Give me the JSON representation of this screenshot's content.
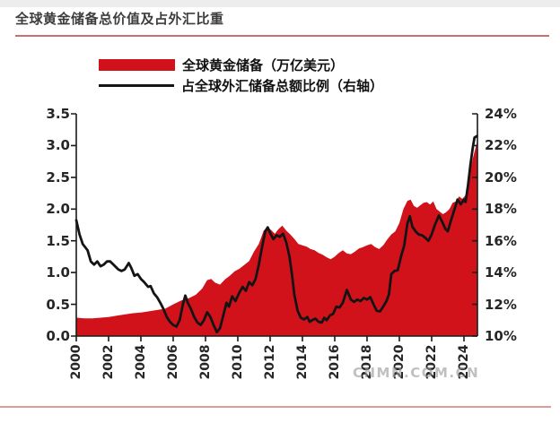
{
  "page": {
    "title": "全球黄金储备总价值及占外汇比重",
    "watermark": "CNMN.COM.CN"
  },
  "legend": [
    {
      "label": "全球黄金储备（万亿美元）",
      "swatch": "red-area"
    },
    {
      "label": "占全球外汇储备总额比例（右轴）",
      "swatch": "black-line"
    }
  ],
  "colors": {
    "gold_area": "#d2121a",
    "ratio_line": "#141414",
    "axis": "#1a1a1a",
    "title_rule": "#c87070",
    "bottom_rule": "#dd9c9c"
  },
  "chart_data": {
    "type": "area",
    "title": "全球黄金储备总价值及占外汇比重",
    "legend_position": "top",
    "grid": false,
    "x_axis": {
      "min": 2000,
      "max": 2024.85,
      "tick_years": [
        2000,
        2002,
        2004,
        2006,
        2008,
        2010,
        2012,
        2014,
        2016,
        2018,
        2020,
        2022,
        2024
      ],
      "labels": [
        "2000",
        "2002",
        "2004",
        "2006",
        "2008",
        "2010",
        "2012",
        "2014",
        "2016",
        "2018",
        "2020",
        "2022",
        "2024"
      ]
    },
    "left_axis": {
      "min": 0,
      "max": 3.5,
      "step": 0.5,
      "labels": [
        "3.5",
        "3.0",
        "2.5",
        "2.0",
        "1.5",
        "1.0",
        "0.5",
        "0.0"
      ]
    },
    "right_axis": {
      "min": 10,
      "max": 24,
      "step": 2,
      "labels": [
        "24%",
        "22%",
        "20%",
        "18%",
        "16%",
        "14%",
        "12%",
        "10%"
      ]
    },
    "series": [
      {
        "name": "全球黄金储备（万亿美元）",
        "style": "area",
        "axis": "left",
        "color": "#d2121a",
        "points": [
          [
            2000.0,
            0.29
          ],
          [
            2000.5,
            0.28
          ],
          [
            2001.0,
            0.28
          ],
          [
            2001.5,
            0.29
          ],
          [
            2002.0,
            0.3
          ],
          [
            2002.5,
            0.32
          ],
          [
            2003.0,
            0.34
          ],
          [
            2003.5,
            0.36
          ],
          [
            2004.0,
            0.37
          ],
          [
            2004.5,
            0.39
          ],
          [
            2005.0,
            0.41
          ],
          [
            2005.5,
            0.43
          ],
          [
            2006.0,
            0.5
          ],
          [
            2006.5,
            0.56
          ],
          [
            2007.0,
            0.6
          ],
          [
            2007.4,
            0.65
          ],
          [
            2007.8,
            0.75
          ],
          [
            2008.1,
            0.88
          ],
          [
            2008.35,
            0.9
          ],
          [
            2008.6,
            0.84
          ],
          [
            2008.9,
            0.81
          ],
          [
            2009.2,
            0.89
          ],
          [
            2009.5,
            0.95
          ],
          [
            2009.8,
            1.02
          ],
          [
            2010.1,
            1.06
          ],
          [
            2010.4,
            1.12
          ],
          [
            2010.7,
            1.18
          ],
          [
            2011.0,
            1.33
          ],
          [
            2011.3,
            1.45
          ],
          [
            2011.6,
            1.66
          ],
          [
            2011.85,
            1.72
          ],
          [
            2012.1,
            1.66
          ],
          [
            2012.3,
            1.61
          ],
          [
            2012.5,
            1.68
          ],
          [
            2012.75,
            1.74
          ],
          [
            2013.0,
            1.66
          ],
          [
            2013.25,
            1.6
          ],
          [
            2013.5,
            1.53
          ],
          [
            2013.75,
            1.45
          ],
          [
            2014.0,
            1.43
          ],
          [
            2014.25,
            1.41
          ],
          [
            2014.5,
            1.37
          ],
          [
            2014.75,
            1.35
          ],
          [
            2015.0,
            1.31
          ],
          [
            2015.25,
            1.28
          ],
          [
            2015.5,
            1.24
          ],
          [
            2015.75,
            1.21
          ],
          [
            2016.0,
            1.25
          ],
          [
            2016.25,
            1.31
          ],
          [
            2016.5,
            1.35
          ],
          [
            2016.75,
            1.3
          ],
          [
            2017.0,
            1.29
          ],
          [
            2017.25,
            1.33
          ],
          [
            2017.5,
            1.38
          ],
          [
            2017.75,
            1.4
          ],
          [
            2018.0,
            1.43
          ],
          [
            2018.25,
            1.45
          ],
          [
            2018.5,
            1.4
          ],
          [
            2018.75,
            1.37
          ],
          [
            2019.0,
            1.43
          ],
          [
            2019.25,
            1.52
          ],
          [
            2019.5,
            1.6
          ],
          [
            2019.75,
            1.65
          ],
          [
            2020.0,
            1.78
          ],
          [
            2020.25,
            2.0
          ],
          [
            2020.5,
            2.13
          ],
          [
            2020.7,
            2.15
          ],
          [
            2020.9,
            2.05
          ],
          [
            2021.1,
            2.02
          ],
          [
            2021.3,
            2.06
          ],
          [
            2021.5,
            2.1
          ],
          [
            2021.7,
            2.11
          ],
          [
            2021.9,
            2.07
          ],
          [
            2022.1,
            2.12
          ],
          [
            2022.3,
            2.0
          ],
          [
            2022.5,
            1.96
          ],
          [
            2022.7,
            1.92
          ],
          [
            2022.9,
            1.95
          ],
          [
            2023.1,
            2.0
          ],
          [
            2023.3,
            2.1
          ],
          [
            2023.5,
            2.12
          ],
          [
            2023.7,
            2.2
          ],
          [
            2023.9,
            2.16
          ],
          [
            2024.1,
            2.22
          ],
          [
            2024.25,
            2.4
          ],
          [
            2024.4,
            2.6
          ],
          [
            2024.55,
            2.8
          ],
          [
            2024.7,
            2.95
          ],
          [
            2024.8,
            3.05
          ]
        ]
      },
      {
        "name": "占全球外汇储备总额比例（右轴）",
        "style": "line",
        "axis": "right",
        "color": "#141414",
        "points": [
          [
            2000.0,
            17.3
          ],
          [
            2000.2,
            16.4
          ],
          [
            2000.4,
            15.8
          ],
          [
            2000.7,
            15.4
          ],
          [
            2000.9,
            14.7
          ],
          [
            2001.1,
            14.5
          ],
          [
            2001.3,
            14.7
          ],
          [
            2001.5,
            14.4
          ],
          [
            2001.7,
            14.5
          ],
          [
            2001.9,
            14.7
          ],
          [
            2002.1,
            14.7
          ],
          [
            2002.3,
            14.5
          ],
          [
            2002.6,
            14.2
          ],
          [
            2002.8,
            14.1
          ],
          [
            2003.0,
            14.2
          ],
          [
            2003.25,
            14.6
          ],
          [
            2003.4,
            14.3
          ],
          [
            2003.6,
            13.8
          ],
          [
            2003.8,
            13.9
          ],
          [
            2004.0,
            13.6
          ],
          [
            2004.2,
            13.4
          ],
          [
            2004.45,
            13.1
          ],
          [
            2004.6,
            13.15
          ],
          [
            2004.8,
            12.7
          ],
          [
            2005.0,
            12.45
          ],
          [
            2005.2,
            12.1
          ],
          [
            2005.4,
            11.7
          ],
          [
            2005.6,
            11.2
          ],
          [
            2005.8,
            10.9
          ],
          [
            2006.0,
            10.7
          ],
          [
            2006.2,
            10.6
          ],
          [
            2006.4,
            11.0
          ],
          [
            2006.6,
            12.0
          ],
          [
            2006.75,
            12.55
          ],
          [
            2006.9,
            12.1
          ],
          [
            2007.1,
            11.7
          ],
          [
            2007.3,
            11.2
          ],
          [
            2007.5,
            10.85
          ],
          [
            2007.7,
            10.7
          ],
          [
            2007.9,
            11.0
          ],
          [
            2008.1,
            11.5
          ],
          [
            2008.3,
            11.2
          ],
          [
            2008.5,
            10.7
          ],
          [
            2008.7,
            10.25
          ],
          [
            2008.9,
            10.5
          ],
          [
            2009.1,
            11.3
          ],
          [
            2009.3,
            12.1
          ],
          [
            2009.45,
            11.85
          ],
          [
            2009.65,
            12.5
          ],
          [
            2009.85,
            12.2
          ],
          [
            2010.1,
            12.75
          ],
          [
            2010.3,
            13.1
          ],
          [
            2010.5,
            12.85
          ],
          [
            2010.7,
            13.4
          ],
          [
            2010.9,
            13.2
          ],
          [
            2011.1,
            13.6
          ],
          [
            2011.3,
            14.5
          ],
          [
            2011.5,
            15.6
          ],
          [
            2011.7,
            16.6
          ],
          [
            2011.85,
            16.85
          ],
          [
            2012.0,
            16.5
          ],
          [
            2012.2,
            16.1
          ],
          [
            2012.4,
            16.35
          ],
          [
            2012.6,
            16.25
          ],
          [
            2012.8,
            16.45
          ],
          [
            2013.0,
            15.9
          ],
          [
            2013.2,
            15.0
          ],
          [
            2013.35,
            13.9
          ],
          [
            2013.5,
            12.6
          ],
          [
            2013.7,
            11.6
          ],
          [
            2013.9,
            11.15
          ],
          [
            2014.1,
            11.05
          ],
          [
            2014.3,
            11.2
          ],
          [
            2014.45,
            10.9
          ],
          [
            2014.6,
            11.0
          ],
          [
            2014.8,
            11.1
          ],
          [
            2015.0,
            10.9
          ],
          [
            2015.2,
            10.85
          ],
          [
            2015.35,
            11.15
          ],
          [
            2015.5,
            11.0
          ],
          [
            2015.7,
            11.3
          ],
          [
            2015.9,
            11.4
          ],
          [
            2016.1,
            11.85
          ],
          [
            2016.3,
            11.8
          ],
          [
            2016.5,
            12.1
          ],
          [
            2016.75,
            12.9
          ],
          [
            2017.0,
            12.3
          ],
          [
            2017.2,
            12.15
          ],
          [
            2017.4,
            12.3
          ],
          [
            2017.6,
            12.2
          ],
          [
            2017.8,
            12.4
          ],
          [
            2018.0,
            12.3
          ],
          [
            2018.2,
            12.45
          ],
          [
            2018.4,
            12.0
          ],
          [
            2018.6,
            11.6
          ],
          [
            2018.8,
            11.55
          ],
          [
            2019.0,
            11.85
          ],
          [
            2019.2,
            12.2
          ],
          [
            2019.35,
            12.6
          ],
          [
            2019.5,
            13.9
          ],
          [
            2019.7,
            14.1
          ],
          [
            2019.9,
            14.15
          ],
          [
            2020.1,
            15.0
          ],
          [
            2020.3,
            15.7
          ],
          [
            2020.5,
            17.1
          ],
          [
            2020.65,
            17.55
          ],
          [
            2020.8,
            16.9
          ],
          [
            2021.0,
            16.6
          ],
          [
            2021.2,
            16.4
          ],
          [
            2021.4,
            16.35
          ],
          [
            2021.6,
            16.2
          ],
          [
            2021.8,
            16.0
          ],
          [
            2022.0,
            16.4
          ],
          [
            2022.2,
            17.0
          ],
          [
            2022.45,
            17.6
          ],
          [
            2022.65,
            17.2
          ],
          [
            2022.85,
            16.75
          ],
          [
            2023.0,
            16.6
          ],
          [
            2023.2,
            17.3
          ],
          [
            2023.45,
            18.1
          ],
          [
            2023.6,
            18.6
          ],
          [
            2023.8,
            18.3
          ],
          [
            2024.0,
            18.6
          ],
          [
            2024.1,
            18.45
          ],
          [
            2024.25,
            19.5
          ],
          [
            2024.4,
            20.8
          ],
          [
            2024.55,
            21.9
          ],
          [
            2024.65,
            22.5
          ],
          [
            2024.8,
            22.6
          ]
        ]
      }
    ]
  }
}
